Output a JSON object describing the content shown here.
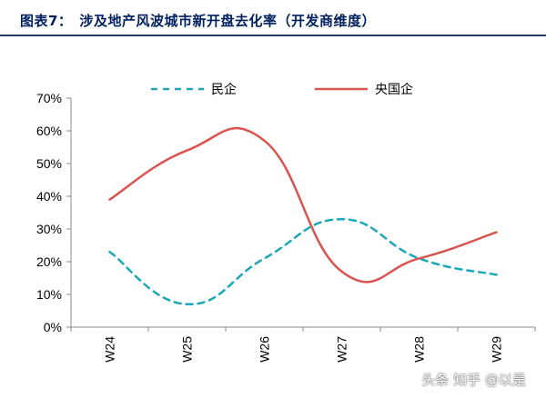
{
  "title": "图表7：　涉及地产风波城市新开盘去化率（开发商维度）",
  "watermark": "知乎 @以是",
  "watermark_prefix": "头条",
  "colors": {
    "title": "#002060",
    "private": "#1aa8b8",
    "soe": "#d9534f"
  },
  "chart_data": {
    "type": "line",
    "categories": [
      "W24",
      "W25",
      "W26",
      "W27",
      "W28",
      "W29"
    ],
    "series": [
      {
        "name": "民企",
        "values": [
          0.23,
          0.07,
          0.21,
          0.33,
          0.21,
          0.16
        ],
        "style": "dashed"
      },
      {
        "name": "央国企",
        "values": [
          0.39,
          0.54,
          0.57,
          0.17,
          0.21,
          0.29
        ],
        "style": "solid"
      }
    ],
    "ylim": [
      0,
      0.7
    ],
    "yticks": [
      "0%",
      "10%",
      "20%",
      "30%",
      "40%",
      "50%",
      "60%",
      "70%"
    ],
    "grid": false,
    "legend": "top"
  }
}
